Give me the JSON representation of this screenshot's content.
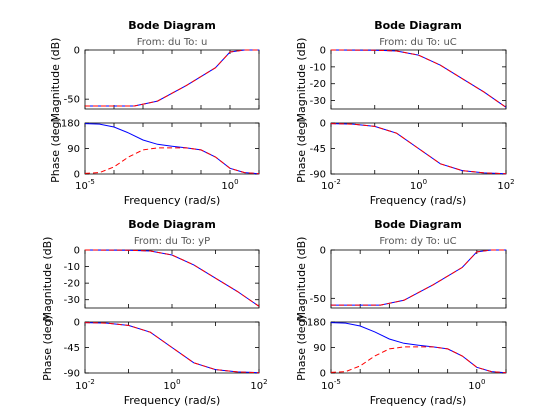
{
  "colors": {
    "series1": "#0000ff",
    "series2": "#ff0000"
  },
  "chart_data": [
    {
      "type": "line",
      "title": "Bode Diagram",
      "subtitle": "From: du  To: u",
      "mag": {
        "ylabel": "Magnitude (dB)",
        "ylim": [
          -60,
          0
        ],
        "yticks": [
          "0",
          "-50"
        ],
        "ytick_values": [
          0,
          -50
        ],
        "log_x": [
          -5,
          -4,
          -3.3,
          -2.5,
          -1.5,
          -0.5,
          0,
          0.5,
          1
        ],
        "series": [
          {
            "values": [
              -57,
              -57,
              -57,
              -52,
              -36,
              -18,
              -2,
              0,
              0
            ]
          },
          {
            "values": [
              -57,
              -57,
              -57,
              -52,
              -36,
              -18,
              -2,
              0,
              0
            ]
          }
        ]
      },
      "phase": {
        "ylabel": "Phase (deg)",
        "ylim": [
          0,
          180
        ],
        "yticks": [
          "180",
          "90",
          "0"
        ],
        "ytick_values": [
          180,
          90,
          0
        ],
        "log_x": [
          -5,
          -4.5,
          -4,
          -3.5,
          -3,
          -2.5,
          -2,
          -1.5,
          -1,
          -0.5,
          0,
          0.5,
          1
        ],
        "series": [
          {
            "values": [
              178,
              176,
              166,
              145,
              120,
              105,
              98,
              92,
              85,
              60,
              20,
              5,
              1
            ]
          },
          {
            "values": [
              2,
              5,
              25,
              60,
              85,
              92,
              92,
              92,
              85,
              60,
              20,
              5,
              1
            ]
          }
        ]
      },
      "xlabel": "Frequency  (rad/s)",
      "xlim_log": [
        -5,
        1
      ],
      "xticks": [
        {
          "base": "10",
          "exp": "-5",
          "log": -5
        },
        {
          "base": "10",
          "exp": "0",
          "log": 0
        }
      ]
    },
    {
      "type": "line",
      "title": "Bode Diagram",
      "subtitle": "From: du  To: uC",
      "mag": {
        "ylabel": "Magnitude (dB)",
        "ylim": [
          -35,
          0
        ],
        "yticks": [
          "0",
          "-10",
          "-20",
          "-30"
        ],
        "ytick_values": [
          0,
          -10,
          -20,
          -30
        ],
        "log_x": [
          -2,
          -1,
          -0.5,
          0,
          0.5,
          1,
          1.5,
          2
        ],
        "series": [
          {
            "values": [
              0,
              -0.1,
              -0.6,
              -3,
              -9,
              -17,
              -25,
              -34
            ]
          },
          {
            "values": [
              0,
              -0.1,
              -0.6,
              -3,
              -9,
              -17,
              -25,
              -34
            ]
          }
        ]
      },
      "phase": {
        "ylabel": "Phase (deg)",
        "ylim": [
          -90,
          0
        ],
        "yticks": [
          "0",
          "-45",
          "-90"
        ],
        "ytick_values": [
          0,
          -45,
          -90
        ],
        "log_x": [
          -2,
          -1.5,
          -1,
          -0.5,
          0,
          0.5,
          1,
          1.5,
          2
        ],
        "series": [
          {
            "values": [
              -1,
              -2,
              -6,
              -18,
              -45,
              -72,
              -84,
              -88,
              -89.5
            ]
          },
          {
            "values": [
              -1,
              -2,
              -6,
              -18,
              -45,
              -72,
              -84,
              -88,
              -89.5
            ]
          }
        ]
      },
      "xlabel": "Frequency  (rad/s)",
      "xlim_log": [
        -2,
        2
      ],
      "xticks": [
        {
          "base": "10",
          "exp": "-2",
          "log": -2
        },
        {
          "base": "10",
          "exp": "0",
          "log": 0
        },
        {
          "base": "10",
          "exp": "2",
          "log": 2
        }
      ]
    },
    {
      "type": "line",
      "title": "Bode Diagram",
      "subtitle": "From: du  To: yP",
      "mag": {
        "ylabel": "Magnitude (dB)",
        "ylim": [
          -35,
          0
        ],
        "yticks": [
          "0",
          "-10",
          "-20",
          "-30"
        ],
        "ytick_values": [
          0,
          -10,
          -20,
          -30
        ],
        "log_x": [
          -2,
          -1,
          -0.5,
          0,
          0.5,
          1,
          1.5,
          2
        ],
        "series": [
          {
            "values": [
              0,
              -0.1,
              -0.6,
              -3,
              -9,
              -17,
              -25,
              -34
            ]
          },
          {
            "values": [
              0,
              -0.1,
              -0.6,
              -3,
              -9,
              -17,
              -25,
              -34
            ]
          }
        ]
      },
      "phase": {
        "ylabel": "Phase (deg)",
        "ylim": [
          -90,
          0
        ],
        "yticks": [
          "0",
          "-45",
          "-90"
        ],
        "ytick_values": [
          0,
          -45,
          -90
        ],
        "log_x": [
          -2,
          -1.5,
          -1,
          -0.5,
          0,
          0.5,
          1,
          1.5,
          2
        ],
        "series": [
          {
            "values": [
              -1,
              -2,
              -6,
              -18,
              -45,
              -72,
              -84,
              -88,
              -89.5
            ]
          },
          {
            "values": [
              -1,
              -2,
              -6,
              -18,
              -45,
              -72,
              -84,
              -88,
              -89.5
            ]
          }
        ]
      },
      "xlabel": "Frequency  (rad/s)",
      "xlim_log": [
        -2,
        2
      ],
      "xticks": [
        {
          "base": "10",
          "exp": "-2",
          "log": -2
        },
        {
          "base": "10",
          "exp": "0",
          "log": 0
        },
        {
          "base": "10",
          "exp": "2",
          "log": 2
        }
      ]
    },
    {
      "type": "line",
      "title": "Bode Diagram",
      "subtitle": "From: dy  To: uC",
      "mag": {
        "ylabel": "Magnitude (dB)",
        "ylim": [
          -60,
          0
        ],
        "yticks": [
          "0",
          "-50"
        ],
        "ytick_values": [
          0,
          -50
        ],
        "log_x": [
          -5,
          -4,
          -3.3,
          -2.5,
          -1.5,
          -0.5,
          0,
          0.5,
          1
        ],
        "series": [
          {
            "values": [
              -57,
              -57,
              -57,
              -52,
              -36,
              -18,
              -2,
              0,
              0
            ]
          },
          {
            "values": [
              -57,
              -57,
              -57,
              -52,
              -36,
              -18,
              -2,
              0,
              0
            ]
          }
        ]
      },
      "phase": {
        "ylabel": "Phase (deg)",
        "ylim": [
          0,
          180
        ],
        "yticks": [
          "180",
          "90",
          "0"
        ],
        "ytick_values": [
          180,
          90,
          0
        ],
        "log_x": [
          -5,
          -4.5,
          -4,
          -3.5,
          -3,
          -2.5,
          -2,
          -1.5,
          -1,
          -0.5,
          0,
          0.5,
          1
        ],
        "series": [
          {
            "values": [
              178,
              176,
              166,
              145,
              120,
              105,
              98,
              92,
              85,
              60,
              20,
              5,
              1
            ]
          },
          {
            "values": [
              2,
              5,
              25,
              60,
              85,
              92,
              92,
              92,
              85,
              60,
              20,
              5,
              1
            ]
          }
        ]
      },
      "xlabel": "Frequency  (rad/s)",
      "xlim_log": [
        -5,
        1
      ],
      "xticks": [
        {
          "base": "10",
          "exp": "-5",
          "log": -5
        },
        {
          "base": "10",
          "exp": "0",
          "log": 0
        }
      ]
    }
  ]
}
